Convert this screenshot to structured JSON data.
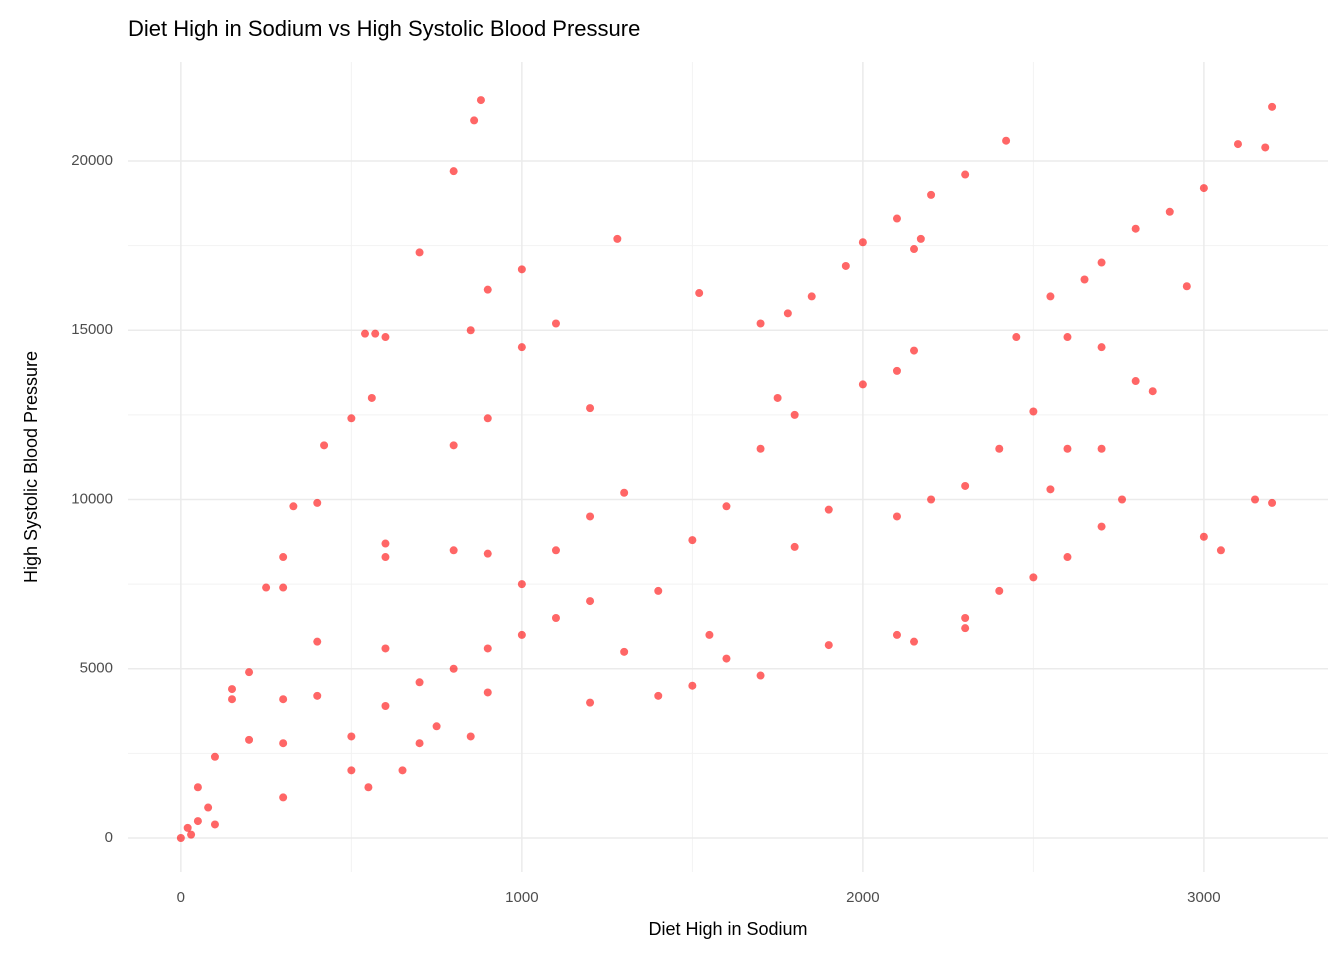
{
  "chart_data": {
    "type": "scatter",
    "title": "Diet High in Sodium vs High Systolic Blood Pressure",
    "x_label": "Diet High in Sodium",
    "y_label": "High Systolic Blood Pressure",
    "color": "#ff0000",
    "grid": true,
    "xlim": [
      -155,
      3364
    ],
    "ylim": [
      -1004,
      22925
    ],
    "xticks": [
      0,
      1000,
      2000,
      3000
    ],
    "yticks": [
      0,
      5000,
      10000,
      15000,
      20000
    ],
    "x": [
      0,
      20,
      30,
      50,
      80,
      100,
      200,
      300,
      400,
      500,
      600,
      700,
      800,
      860,
      880,
      50,
      150,
      250,
      330,
      150,
      300,
      420,
      540,
      560,
      570,
      200,
      400,
      600,
      800,
      1000,
      300,
      600,
      900,
      1100,
      1280,
      1000,
      900,
      850,
      400,
      800,
      1200,
      1520,
      1700,
      1850,
      1780,
      1950,
      2000,
      2100,
      2200,
      2300,
      2420,
      2150,
      2170,
      2700,
      2800,
      2900,
      3000,
      3100,
      3200,
      3180,
      1200,
      1500,
      1700,
      1900,
      2100,
      2300,
      2400,
      2500,
      2600,
      2700,
      2760,
      3050,
      3000,
      3150,
      3200,
      1300,
      1400,
      1500,
      1600,
      1700,
      1800,
      1550,
      1600,
      1400,
      1200,
      1100,
      1000,
      900,
      800,
      700,
      600,
      500,
      750,
      850,
      550,
      650,
      900,
      1000,
      1100,
      1200,
      1300,
      100,
      300,
      500,
      700,
      300,
      600,
      900,
      2300,
      2400,
      2500,
      2600,
      2700,
      2800,
      2850,
      2550,
      2650,
      2600,
      2700,
      2550,
      2450,
      2950,
      2100,
      2200,
      2000,
      2100,
      2150,
      2150,
      2300,
      1900,
      1750,
      1800
    ],
    "values": [
      0,
      300,
      100,
      500,
      900,
      2400,
      4900,
      7400,
      9900,
      12400,
      14800,
      17300,
      19700,
      21200,
      21800,
      1500,
      4400,
      7400,
      9800,
      4100,
      8300,
      11600,
      14900,
      13000,
      14900,
      2900,
      5800,
      8700,
      11600,
      14500,
      4100,
      8300,
      12400,
      15200,
      17700,
      16800,
      16200,
      15000,
      4200,
      8500,
      12700,
      16100,
      15200,
      16000,
      15500,
      16900,
      17600,
      18300,
      19000,
      19600,
      20600,
      17400,
      17700,
      17000,
      18000,
      18500,
      19200,
      20500,
      21600,
      20400,
      4000,
      4500,
      4800,
      5700,
      6000,
      6500,
      7300,
      7700,
      8300,
      9200,
      10000,
      8500,
      8900,
      10000,
      9900,
      5500,
      7300,
      8800,
      9800,
      11500,
      8600,
      6000,
      5300,
      4200,
      7000,
      6500,
      6000,
      5600,
      5000,
      4600,
      3900,
      3000,
      3300,
      3000,
      1500,
      2000,
      4300,
      7500,
      8500,
      9500,
      10200,
      400,
      1200,
      2000,
      2800,
      2800,
      5600,
      8400,
      10400,
      11500,
      12600,
      14800,
      14500,
      13500,
      13200,
      16000,
      16500,
      11500,
      11500,
      10300,
      14800,
      16300,
      9500,
      10000,
      13400,
      13800,
      14400,
      5800,
      6200,
      9700,
      13000,
      12500
    ]
  }
}
